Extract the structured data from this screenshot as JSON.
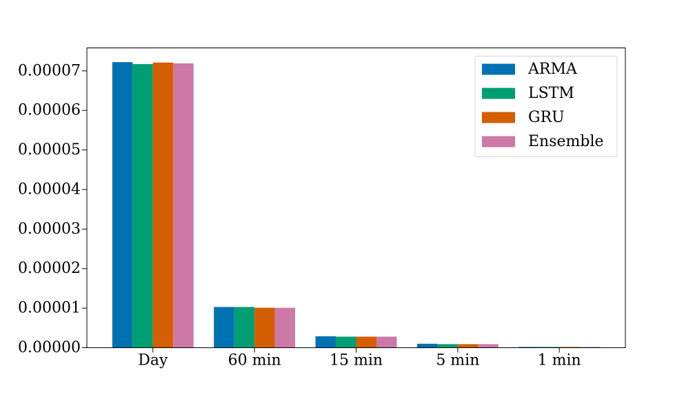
{
  "chart_data": {
    "type": "bar",
    "categories": [
      "Day",
      "60 min",
      "15 min",
      "5 min",
      "1 min"
    ],
    "series": [
      {
        "name": "ARMA",
        "color": "#0072B2",
        "values": [
          7.22e-05,
          1.03e-05,
          2.9e-06,
          1e-06,
          2e-07
        ]
      },
      {
        "name": "LSTM",
        "color": "#009E73",
        "values": [
          7.17e-05,
          1.03e-05,
          2.8e-06,
          9e-07,
          2e-07
        ]
      },
      {
        "name": "GRU",
        "color": "#D55E00",
        "values": [
          7.21e-05,
          1.01e-05,
          2.8e-06,
          9e-07,
          2e-07
        ]
      },
      {
        "name": "Ensemble",
        "color": "#CC79A7",
        "values": [
          7.19e-05,
          1.01e-05,
          2.8e-06,
          9e-07,
          2e-07
        ]
      }
    ],
    "yticks": [
      "0.00000",
      "0.00001",
      "0.00002",
      "0.00003",
      "0.00004",
      "0.00005",
      "0.00006",
      "0.00007"
    ],
    "ylim": [
      0,
      7.58e-05
    ],
    "legend_position": "top-right",
    "grid": false
  }
}
